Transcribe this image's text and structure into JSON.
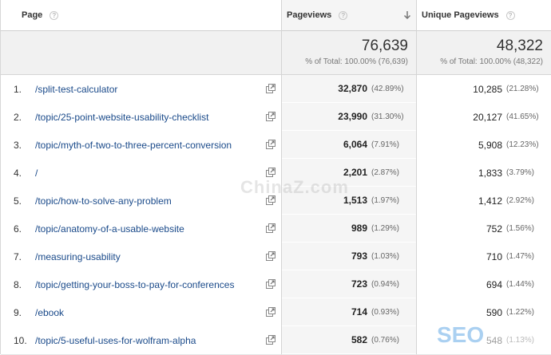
{
  "columns": {
    "page": "Page",
    "pageviews": "Pageviews",
    "unique_pageviews": "Unique Pageviews",
    "help_glyph": "?"
  },
  "totals": {
    "pageviews": "76,639",
    "pageviews_pct": "% of Total: 100.00% (76,639)",
    "unique_pageviews": "48,322",
    "unique_pageviews_pct": "% of Total: 100.00% (48,322)"
  },
  "rows": [
    {
      "idx": "1.",
      "page": "/split-test-calculator",
      "pv": "32,870",
      "pv_pct": "(42.89%)",
      "upv": "10,285",
      "upv_pct": "(21.28%)"
    },
    {
      "idx": "2.",
      "page": "/topic/25-point-website-usability-checklist",
      "pv": "23,990",
      "pv_pct": "(31.30%)",
      "upv": "20,127",
      "upv_pct": "(41.65%)"
    },
    {
      "idx": "3.",
      "page": "/topic/myth-of-two-to-three-percent-conversion",
      "pv": "6,064",
      "pv_pct": "(7.91%)",
      "upv": "5,908",
      "upv_pct": "(12.23%)"
    },
    {
      "idx": "4.",
      "page": "/",
      "pv": "2,201",
      "pv_pct": "(2.87%)",
      "upv": "1,833",
      "upv_pct": "(3.79%)"
    },
    {
      "idx": "5.",
      "page": "/topic/how-to-solve-any-problem",
      "pv": "1,513",
      "pv_pct": "(1.97%)",
      "upv": "1,412",
      "upv_pct": "(2.92%)"
    },
    {
      "idx": "6.",
      "page": "/topic/anatomy-of-a-usable-website",
      "pv": "989",
      "pv_pct": "(1.29%)",
      "upv": "752",
      "upv_pct": "(1.56%)"
    },
    {
      "idx": "7.",
      "page": "/measuring-usability",
      "pv": "793",
      "pv_pct": "(1.03%)",
      "upv": "710",
      "upv_pct": "(1.47%)"
    },
    {
      "idx": "8.",
      "page": "/topic/getting-your-boss-to-pay-for-conferences",
      "pv": "723",
      "pv_pct": "(0.94%)",
      "upv": "694",
      "upv_pct": "(1.44%)"
    },
    {
      "idx": "9.",
      "page": "/ebook",
      "pv": "714",
      "pv_pct": "(0.93%)",
      "upv": "590",
      "upv_pct": "(1.22%)"
    },
    {
      "idx": "10.",
      "page": "/topic/5-useful-uses-for-wolfram-alpha",
      "pv": "582",
      "pv_pct": "(0.76%)",
      "upv": "548",
      "upv_pct": "(1.13%)"
    }
  ],
  "watermark": {
    "text": "ChinaZ.com",
    "badge": "SEO"
  },
  "icons": {
    "help": "help-icon",
    "sort": "sort-descending-icon",
    "external": "open-external-icon"
  },
  "colors": {
    "link": "#1a4a8a",
    "totals_bg": "#f1f1f1",
    "sorted_col_bg": "#f5f5f5"
  }
}
